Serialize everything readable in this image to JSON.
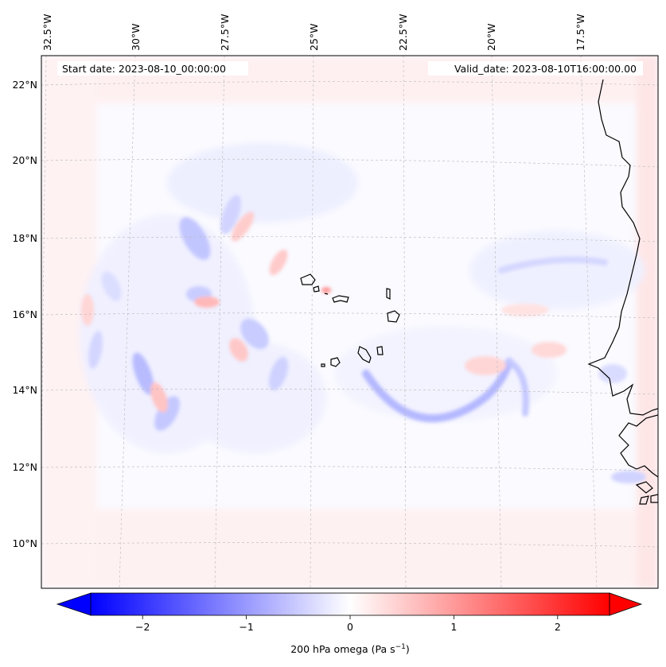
{
  "map": {
    "type": "contour-map",
    "annotations": {
      "start_date": "Start date: 2023-08-10_00:00:00",
      "valid_date": "Valid_date: 2023-08-10T16:00:00.00"
    },
    "lon_ticks": [
      "32.5°W",
      "30°W",
      "27.5°W",
      "25°W",
      "22.5°W",
      "20°W",
      "17.5°W"
    ],
    "lat_ticks": [
      "22°N",
      "20°N",
      "18°N",
      "16°N",
      "14°N",
      "12°N",
      "10°N"
    ],
    "gridlines": true,
    "coastlines": true,
    "colormap": "bwr",
    "colors": {
      "negative": "#0000ff",
      "neutral": "#ffffff",
      "positive": "#ff0000",
      "coast": "#000000"
    }
  },
  "colorbar": {
    "ticks": [
      "−2",
      "−1",
      "0",
      "1",
      "2"
    ],
    "tick_values": [
      -2,
      -1,
      0,
      1,
      2
    ],
    "range": [
      -2.5,
      2.5
    ],
    "extend": "both",
    "label": "200 hPa omega (Pa s",
    "label_exp": "−1",
    "label_end": ")"
  }
}
